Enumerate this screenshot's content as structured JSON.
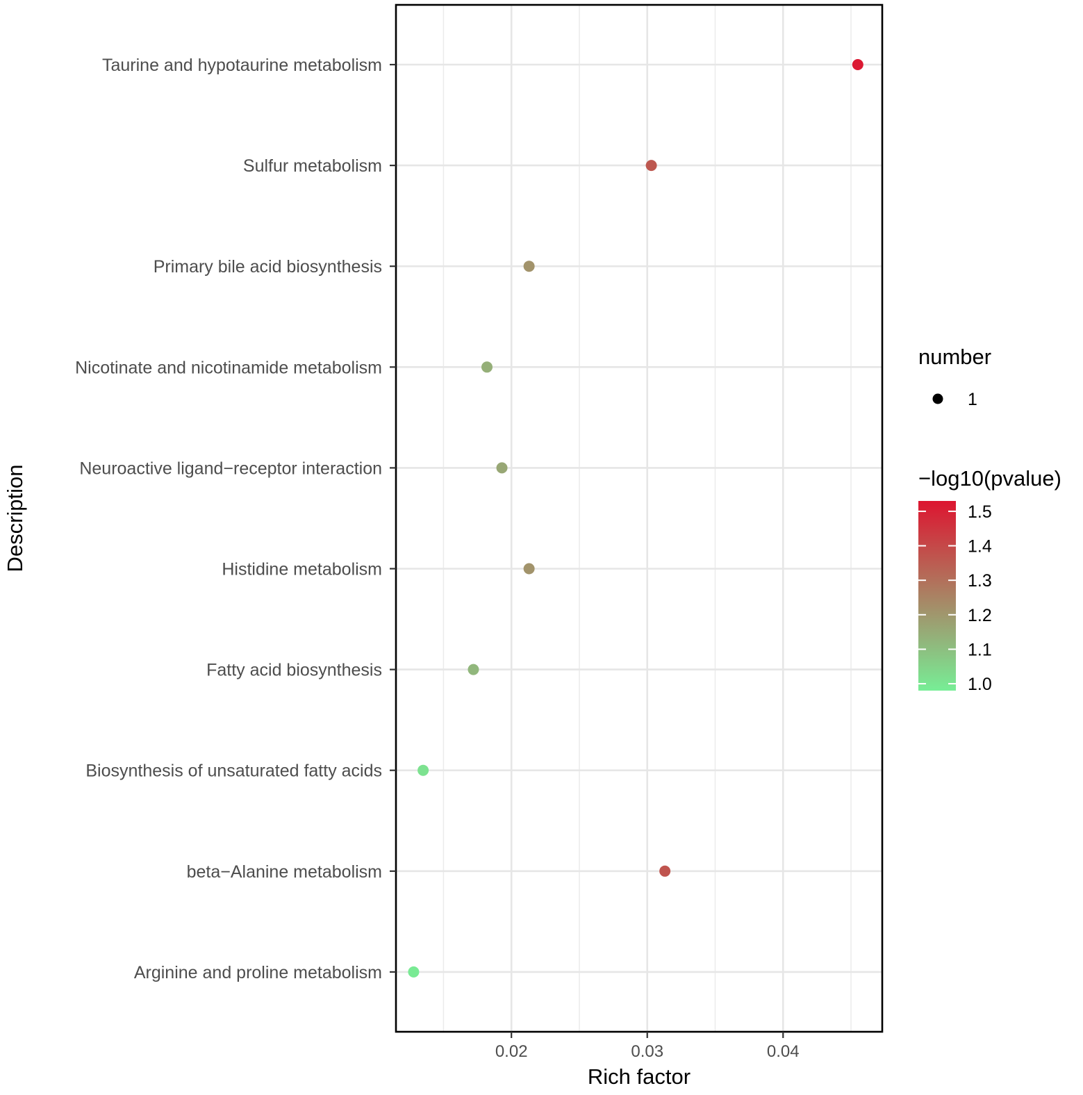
{
  "chart_data": {
    "type": "scatter",
    "title": "",
    "xlabel": "Rich factor",
    "ylabel": "Description",
    "xlim": [
      0.0115,
      0.0473
    ],
    "x_ticks": [
      0.02,
      0.03,
      0.04
    ],
    "x_tick_labels": [
      "0.02",
      "0.03",
      "0.04"
    ],
    "grid": true,
    "categories": [
      "Taurine and hypotaurine metabolism",
      "Sulfur metabolism",
      "Primary bile acid biosynthesis",
      "Nicotinate and nicotinamide metabolism",
      "Neuroactive ligand−receptor interaction",
      "Histidine metabolism",
      "Fatty acid biosynthesis",
      "Biosynthesis of unsaturated fatty acids",
      "beta−Alanine metabolism",
      "Arginine and proline metabolism"
    ],
    "points": [
      {
        "category": "Taurine and hypotaurine metabolism",
        "rich_factor": 0.0455,
        "neg_log10_pvalue": 1.52,
        "number": 1
      },
      {
        "category": "Sulfur metabolism",
        "rich_factor": 0.0303,
        "neg_log10_pvalue": 1.36,
        "number": 1
      },
      {
        "category": "Primary bile acid biosynthesis",
        "rich_factor": 0.0213,
        "neg_log10_pvalue": 1.21,
        "number": 1
      },
      {
        "category": "Nicotinate and nicotinamide metabolism",
        "rich_factor": 0.0182,
        "neg_log10_pvalue": 1.14,
        "number": 1
      },
      {
        "category": "Neuroactive ligand−receptor interaction",
        "rich_factor": 0.0193,
        "neg_log10_pvalue": 1.16,
        "number": 1
      },
      {
        "category": "Histidine metabolism",
        "rich_factor": 0.0213,
        "neg_log10_pvalue": 1.21,
        "number": 1
      },
      {
        "category": "Fatty acid biosynthesis",
        "rich_factor": 0.0172,
        "neg_log10_pvalue": 1.12,
        "number": 1
      },
      {
        "category": "Biosynthesis of unsaturated fatty acids",
        "rich_factor": 0.0135,
        "neg_log10_pvalue": 1.01,
        "number": 1
      },
      {
        "category": "beta−Alanine metabolism",
        "rich_factor": 0.0313,
        "neg_log10_pvalue": 1.37,
        "number": 1
      },
      {
        "category": "Arginine and proline metabolism",
        "rich_factor": 0.0128,
        "neg_log10_pvalue": 0.99,
        "number": 1
      }
    ],
    "legend_size": {
      "title": "number",
      "entries": [
        {
          "value": 1,
          "label": "1"
        }
      ]
    },
    "legend_color": {
      "title": "−log10(pvalue)",
      "range": [
        0.98,
        1.53
      ],
      "ticks": [
        1.0,
        1.1,
        1.2,
        1.3,
        1.4,
        1.5
      ],
      "tick_labels": [
        "1.0",
        "1.1",
        "1.2",
        "1.3",
        "1.4",
        "1.5"
      ],
      "low_color": "#77ee96",
      "high_color": "#dd1530"
    },
    "legend_position": "right"
  }
}
